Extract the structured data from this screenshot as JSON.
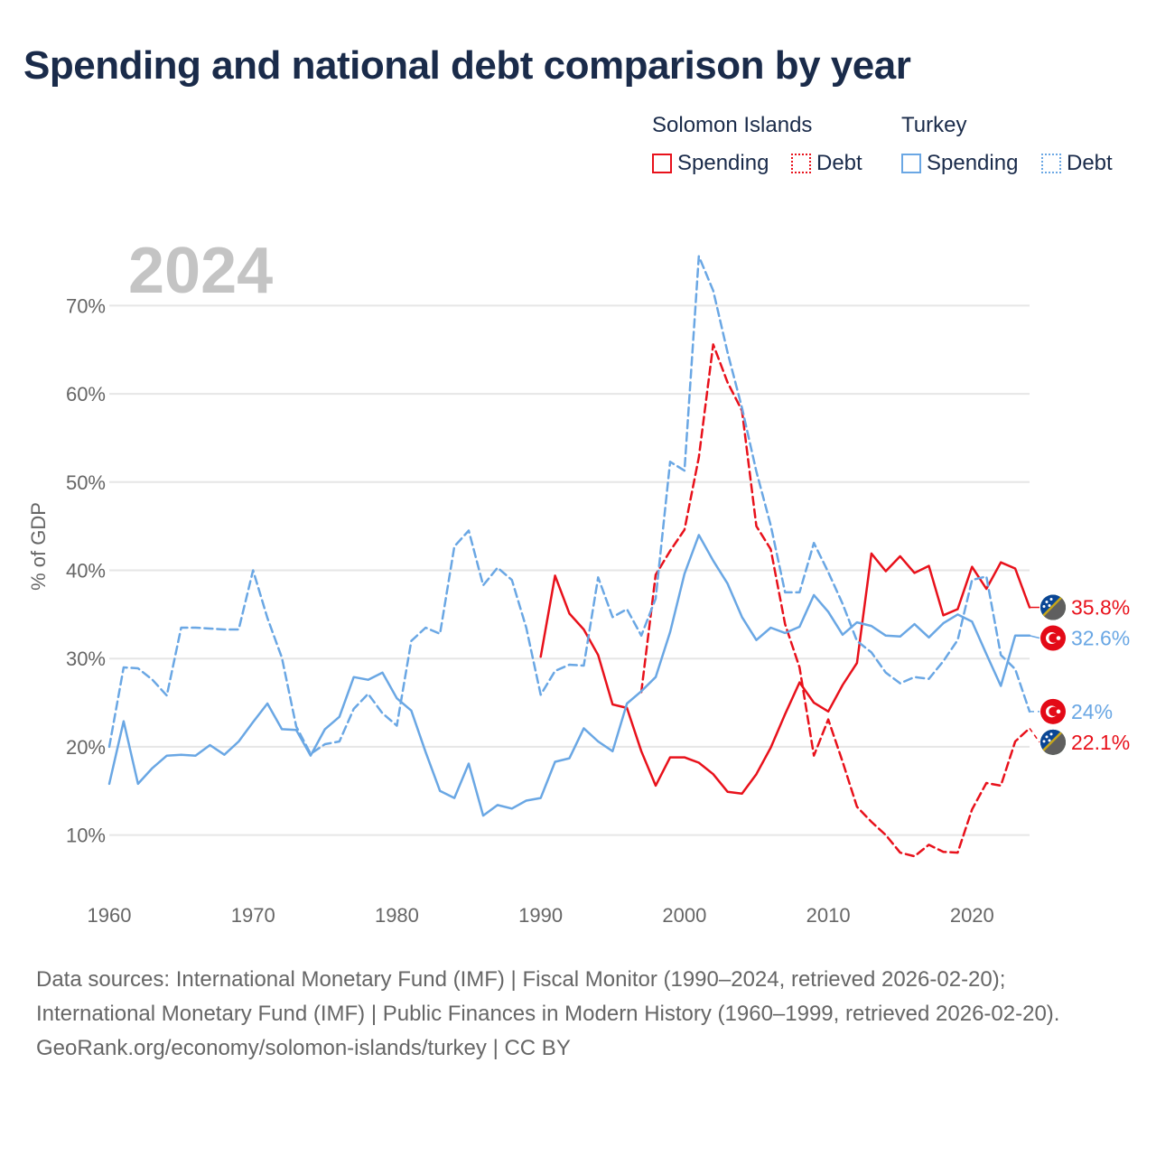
{
  "title": "Spending and national debt comparison by year",
  "legend": {
    "groups": [
      {
        "name": "Solomon Islands",
        "color": "#e8111b",
        "items": [
          {
            "label": "Spending",
            "style": "solid"
          },
          {
            "label": "Debt",
            "style": "dotted"
          }
        ]
      },
      {
        "name": "Turkey",
        "color": "#6aa7e4",
        "items": [
          {
            "label": "Spending",
            "style": "solid"
          },
          {
            "label": "Debt",
            "style": "dotted"
          }
        ]
      }
    ]
  },
  "footer": {
    "sources": "Data sources: International Monetary Fund (IMF) | Fiscal Monitor (1990–2024, retrieved 2026-02-20); International Monetary Fund (IMF) | Public Finances in Modern History (1960–1999, retrieved 2026-02-20).",
    "credit": "GeoRank.org/economy/solomon-islands/turkey | CC BY"
  },
  "chart_data": {
    "type": "line",
    "year_label": "2024",
    "ylabel": "% of GDP",
    "xlabel": "",
    "xlim": [
      1960,
      2024
    ],
    "ylim": [
      3,
      77
    ],
    "x_ticks": [
      1960,
      1970,
      1980,
      1990,
      2000,
      2010,
      2020
    ],
    "y_ticks": [
      10,
      20,
      30,
      40,
      50,
      60,
      70
    ],
    "y_tick_labels": [
      "10%",
      "20%",
      "30%",
      "40%",
      "50%",
      "60%",
      "70%"
    ],
    "grid": true,
    "series": [
      {
        "name": "Solomon Islands Spending",
        "country": "Solomon Islands",
        "color": "#e8111b",
        "dash": "solid",
        "end_label": "35.8%",
        "end_value": 35.8,
        "end_flag": "solomon",
        "x": [
          1990,
          1991,
          1992,
          1993,
          1994,
          1995,
          1996,
          1997,
          1998,
          1999,
          2000,
          2001,
          2002,
          2003,
          2004,
          2005,
          2006,
          2007,
          2008,
          2009,
          2010,
          2011,
          2012,
          2013,
          2014,
          2015,
          2016,
          2017,
          2018,
          2019,
          2020,
          2021,
          2022,
          2023,
          2024
        ],
        "values": [
          30.2,
          39.4,
          35.1,
          33.3,
          30.4,
          24.8,
          24.4,
          19.5,
          15.6,
          18.8,
          18.8,
          18.2,
          16.9,
          14.9,
          14.7,
          16.9,
          19.9,
          23.7,
          27.3,
          25.0,
          24.0,
          27.0,
          29.5,
          41.9,
          39.9,
          41.6,
          39.7,
          40.5,
          34.9,
          35.6,
          40.4,
          37.9,
          40.9,
          40.2,
          35.8
        ]
      },
      {
        "name": "Solomon Islands Debt",
        "country": "Solomon Islands",
        "color": "#e8111b",
        "dash": "dashed",
        "end_label": "22.1%",
        "end_value": 22.1,
        "end_flag": "solomon",
        "x": [
          1997,
          1998,
          1999,
          2000,
          2001,
          2002,
          2003,
          2004,
          2005,
          2006,
          2007,
          2008,
          2009,
          2010,
          2011,
          2012,
          2013,
          2014,
          2015,
          2016,
          2017,
          2018,
          2019,
          2020,
          2021,
          2022,
          2023,
          2024
        ],
        "values": [
          26.2,
          39.5,
          42.2,
          44.6,
          52.8,
          65.6,
          61.3,
          58.1,
          45.0,
          42.4,
          33.9,
          29.0,
          19.0,
          23.1,
          18.3,
          13.2,
          11.5,
          10.0,
          8.0,
          7.6,
          8.9,
          8.1,
          8.0,
          12.9,
          15.9,
          15.6,
          20.6,
          22.1
        ]
      },
      {
        "name": "Turkey Spending",
        "country": "Turkey",
        "color": "#6aa7e4",
        "dash": "solid",
        "end_label": "32.6%",
        "end_value": 32.6,
        "end_flag": "turkey",
        "x": [
          1960,
          1961,
          1962,
          1963,
          1964,
          1965,
          1966,
          1967,
          1968,
          1969,
          1970,
          1971,
          1972,
          1973,
          1974,
          1975,
          1976,
          1977,
          1978,
          1979,
          1980,
          1981,
          1982,
          1983,
          1984,
          1985,
          1986,
          1987,
          1988,
          1989,
          1990,
          1991,
          1992,
          1993,
          1994,
          1995,
          1996,
          1997,
          1998,
          1999,
          2000,
          2001,
          2002,
          2003,
          2004,
          2005,
          2006,
          2007,
          2008,
          2009,
          2010,
          2011,
          2012,
          2013,
          2014,
          2015,
          2016,
          2017,
          2018,
          2019,
          2020,
          2021,
          2022,
          2023,
          2024
        ],
        "values": [
          15.8,
          22.9,
          15.8,
          17.6,
          19.0,
          19.1,
          19.0,
          20.2,
          19.1,
          20.6,
          22.8,
          24.9,
          22.0,
          21.9,
          19.0,
          22.0,
          23.4,
          27.9,
          27.6,
          28.4,
          25.5,
          24.1,
          19.4,
          15.0,
          14.2,
          18.1,
          12.2,
          13.4,
          13.0,
          13.9,
          14.2,
          18.3,
          18.7,
          22.1,
          20.6,
          19.5,
          24.9,
          26.3,
          27.9,
          33.0,
          39.6,
          44.0,
          41.1,
          38.5,
          34.7,
          32.1,
          33.5,
          32.9,
          33.6,
          37.2,
          35.3,
          32.7,
          34.1,
          33.7,
          32.6,
          32.5,
          33.9,
          32.4,
          34.0,
          35.0,
          34.2,
          30.5,
          26.9,
          32.6,
          32.6
        ]
      },
      {
        "name": "Turkey Debt",
        "country": "Turkey",
        "color": "#6aa7e4",
        "dash": "dashed",
        "end_label": "24%",
        "end_value": 24.0,
        "end_flag": "turkey",
        "x": [
          1960,
          1961,
          1962,
          1963,
          1964,
          1965,
          1966,
          1967,
          1968,
          1969,
          1970,
          1971,
          1972,
          1973,
          1974,
          1975,
          1976,
          1977,
          1978,
          1979,
          1980,
          1981,
          1982,
          1983,
          1984,
          1985,
          1986,
          1987,
          1988,
          1989,
          1990,
          1991,
          1992,
          1993,
          1994,
          1995,
          1996,
          1997,
          1998,
          1999,
          2000,
          2001,
          2002,
          2003,
          2004,
          2005,
          2006,
          2007,
          2008,
          2009,
          2010,
          2011,
          2012,
          2013,
          2014,
          2015,
          2016,
          2017,
          2018,
          2019,
          2020,
          2021,
          2022,
          2023,
          2024
        ],
        "values": [
          20.0,
          29.0,
          28.9,
          27.6,
          25.8,
          33.5,
          33.5,
          33.4,
          33.3,
          33.3,
          40.0,
          34.6,
          30.1,
          22.3,
          19.2,
          20.3,
          20.6,
          24.3,
          26.0,
          23.8,
          22.4,
          32.0,
          33.5,
          32.8,
          42.7,
          44.5,
          38.3,
          40.3,
          38.9,
          33.5,
          25.9,
          28.6,
          29.3,
          29.2,
          39.2,
          34.7,
          35.6,
          32.6,
          36.8,
          52.3,
          51.3,
          75.6,
          71.7,
          64.7,
          58.4,
          51.2,
          45.1,
          37.5,
          37.5,
          43.1,
          39.8,
          36.2,
          32.0,
          30.7,
          28.4,
          27.2,
          27.9,
          27.7,
          29.7,
          32.1,
          38.9,
          39.3,
          30.4,
          28.8,
          24.0
        ]
      }
    ]
  },
  "colors": {
    "solomon": "#e8111b",
    "turkey": "#6aa7e4",
    "title": "#1a2b4a",
    "axis_text": "#666666",
    "grid": "#e6e6e6",
    "year_watermark": "#c4c4c4"
  }
}
